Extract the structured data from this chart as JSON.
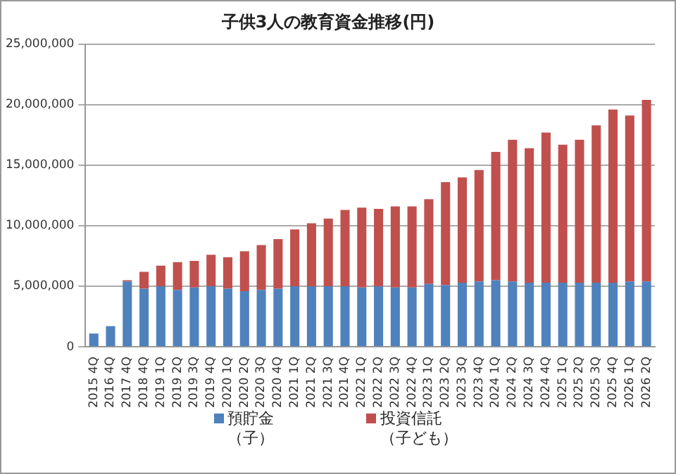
{
  "chart_data": {
    "type": "bar",
    "title": "子供3人の教育資金推移(円)",
    "stacked": true,
    "categories": [
      "2015 4Q",
      "2016 4Q",
      "2017 4Q",
      "2018 4Q",
      "2019 1Q",
      "2019 2Q",
      "2019 3Q",
      "2019 4Q",
      "2020 1Q",
      "2020 2Q",
      "2020 3Q",
      "2020 4Q",
      "2021 1Q",
      "2021 2Q",
      "2021 3Q",
      "2021 4Q",
      "2022 1Q",
      "2022 2Q",
      "2022 3Q",
      "2022 4Q",
      "2023 1Q",
      "2023 2Q",
      "2023 3Q",
      "2023 4Q",
      "2024 1Q",
      "2024 2Q",
      "2024 3Q",
      "2024 4Q",
      "2025 1Q",
      "2025 2Q",
      "2025 3Q",
      "2025 4Q",
      "2026 1Q",
      "2026 2Q"
    ],
    "series": [
      {
        "name": "預貯金（子）",
        "color": "#4f81bd",
        "values": [
          1100000,
          1700000,
          5400000,
          4800000,
          5000000,
          4700000,
          4900000,
          5000000,
          4800000,
          4600000,
          4700000,
          4800000,
          5000000,
          5000000,
          5000000,
          5000000,
          4900000,
          5000000,
          4900000,
          4900000,
          5200000,
          5100000,
          5300000,
          5400000,
          5500000,
          5400000,
          5300000,
          5300000,
          5300000,
          5300000,
          5300000,
          5300000,
          5400000,
          5400000
        ]
      },
      {
        "name": "投資信託（子ども）",
        "color": "#c0504d",
        "values": [
          0,
          0,
          100000,
          1400000,
          1700000,
          2300000,
          2200000,
          2600000,
          2600000,
          3300000,
          3700000,
          4100000,
          4700000,
          5200000,
          5600000,
          6300000,
          6600000,
          6400000,
          6700000,
          6700000,
          7000000,
          8500000,
          8700000,
          9200000,
          10600000,
          11700000,
          11100000,
          12400000,
          11400000,
          11800000,
          13000000,
          14300000,
          13700000,
          15000000
        ]
      }
    ],
    "ylim": [
      0,
      25000000
    ],
    "yticks": [
      0,
      {
        "value": 5000000,
        "label": "5,000,000"
      },
      {
        "value": 10000000,
        "label": "10,000,000"
      },
      {
        "value": 15000000,
        "label": "15,000,000"
      },
      {
        "value": 20000000,
        "label": "20,000,000"
      },
      {
        "value": 25000000,
        "label": "25,000,000"
      }
    ],
    "grid": "y",
    "legend": "bottom"
  }
}
